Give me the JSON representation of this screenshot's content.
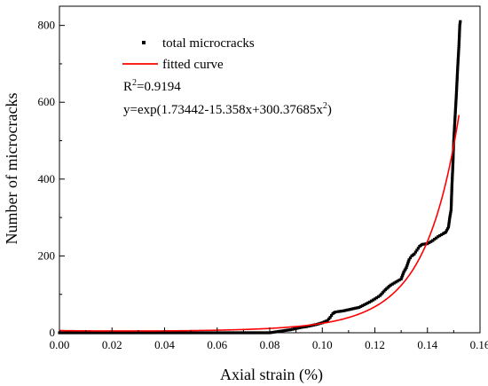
{
  "chart_data": {
    "type": "scatter",
    "xlabel": "Axial strain (%)",
    "ylabel": "Number of microcracks",
    "xlim": [
      0.0,
      0.16
    ],
    "ylim": [
      0,
      850
    ],
    "x_ticks": [
      "0.00",
      "0.02",
      "0.04",
      "0.06",
      "0.08",
      "0.10",
      "0.12",
      "0.14",
      "0.16"
    ],
    "y_ticks": [
      "0",
      "200",
      "400",
      "600",
      "800"
    ],
    "grid": false,
    "legend_position": "top-left",
    "series": [
      {
        "name": "total microcracks",
        "kind": "scatter",
        "color": "#000000",
        "points": [
          [
            0.0,
            0
          ],
          [
            0.08,
            0
          ],
          [
            0.082,
            2
          ],
          [
            0.084,
            4
          ],
          [
            0.086,
            6
          ],
          [
            0.088,
            8
          ],
          [
            0.09,
            11
          ],
          [
            0.092,
            14
          ],
          [
            0.094,
            16
          ],
          [
            0.096,
            19
          ],
          [
            0.098,
            22
          ],
          [
            0.1,
            26
          ],
          [
            0.102,
            32
          ],
          [
            0.103,
            40
          ],
          [
            0.104,
            50
          ],
          [
            0.105,
            54
          ],
          [
            0.106,
            55
          ],
          [
            0.108,
            57
          ],
          [
            0.11,
            60
          ],
          [
            0.112,
            63
          ],
          [
            0.114,
            66
          ],
          [
            0.116,
            73
          ],
          [
            0.118,
            80
          ],
          [
            0.12,
            88
          ],
          [
            0.122,
            97
          ],
          [
            0.124,
            112
          ],
          [
            0.126,
            124
          ],
          [
            0.128,
            132
          ],
          [
            0.13,
            140
          ],
          [
            0.131,
            158
          ],
          [
            0.132,
            170
          ],
          [
            0.133,
            190
          ],
          [
            0.134,
            200
          ],
          [
            0.135,
            205
          ],
          [
            0.136,
            215
          ],
          [
            0.137,
            225
          ],
          [
            0.138,
            230
          ],
          [
            0.14,
            232
          ],
          [
            0.142,
            240
          ],
          [
            0.144,
            250
          ],
          [
            0.146,
            258
          ],
          [
            0.147,
            262
          ],
          [
            0.148,
            275
          ],
          [
            0.1485,
            300
          ],
          [
            0.149,
            320
          ],
          [
            0.1493,
            380
          ],
          [
            0.1497,
            440
          ],
          [
            0.15,
            500
          ],
          [
            0.1505,
            560
          ],
          [
            0.151,
            620
          ],
          [
            0.1515,
            690
          ],
          [
            0.152,
            750
          ],
          [
            0.1523,
            800
          ],
          [
            0.1525,
            810
          ]
        ]
      },
      {
        "name": "fitted curve",
        "kind": "line",
        "color": "#ff0000",
        "equation": {
          "a": 1.73442,
          "b": -15.358,
          "c": 300.37685
        },
        "x_range": [
          0.0,
          0.152
        ]
      }
    ],
    "annotations": {
      "r2_base": "R",
      "r2_sup": "2",
      "r2_value": "=0.9194",
      "eq_prefix": "y=exp(1.73442-15.358x+300.37685x",
      "eq_sup": "2",
      "eq_suffix": ")"
    }
  }
}
